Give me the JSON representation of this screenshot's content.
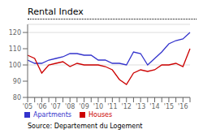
{
  "chart_data": {
    "type": "line",
    "title": "Rental Index",
    "source": "Source: Departement du Logement",
    "categories": [
      "'05",
      null,
      "'06",
      null,
      "'07",
      null,
      "'08",
      null,
      "'09",
      null,
      "'10",
      null,
      "'11",
      null,
      "'12",
      null,
      "'13",
      null,
      "'14",
      null,
      "'15",
      null,
      "'16",
      null
    ],
    "series": [
      {
        "name": "Apartments",
        "color": "#3333cc",
        "values": [
          103,
          101,
          101,
          103,
          104,
          105,
          107,
          107,
          106,
          106,
          103,
          103,
          101,
          101,
          100,
          108,
          107,
          100,
          104,
          108,
          113,
          115,
          116,
          120
        ]
      },
      {
        "name": "Houses",
        "color": "#cc0000",
        "values": [
          106,
          104,
          95,
          100,
          101,
          102,
          99,
          101,
          100,
          100,
          100,
          99,
          97,
          91,
          88,
          95,
          97,
          96,
          97,
          100,
          100,
          101,
          99,
          110
        ]
      }
    ],
    "ylim": [
      80,
      125
    ],
    "yticks": [
      80,
      90,
      100,
      110,
      120
    ],
    "grid": true,
    "legend": "bottom"
  }
}
